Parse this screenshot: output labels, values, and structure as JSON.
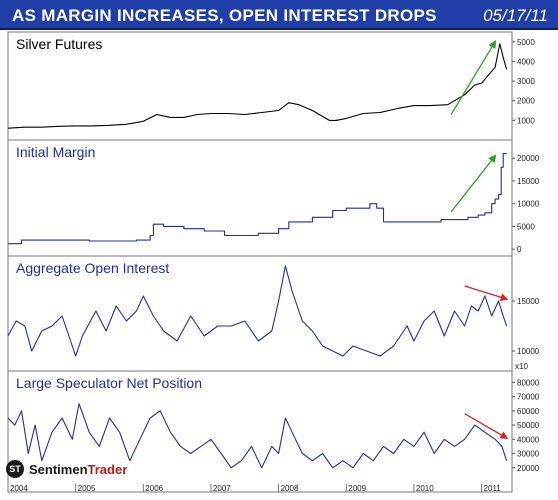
{
  "header": {
    "title": "AS MARGIN INCREASES, OPEN INTEREST DROPS",
    "date": "05/17/11",
    "bg_color": "#1f3ea8"
  },
  "logo": {
    "mark": "ST",
    "word_1": "Sentimen",
    "word_2": "Trader"
  },
  "chart_data": [
    {
      "type": "line",
      "title": "Silver Futures",
      "title_color": "#000000",
      "line_color": "#000000",
      "ylim": [
        0,
        5500
      ],
      "yticks": [
        1000,
        2000,
        3000,
        4000,
        5000
      ],
      "x": [
        2004.0,
        2004.25,
        2004.5,
        2004.75,
        2005.0,
        2005.25,
        2005.5,
        2005.75,
        2006.0,
        2006.2,
        2006.4,
        2006.6,
        2006.8,
        2007.0,
        2007.25,
        2007.5,
        2007.75,
        2008.0,
        2008.15,
        2008.3,
        2008.5,
        2008.75,
        2008.85,
        2009.0,
        2009.25,
        2009.5,
        2009.75,
        2010.0,
        2010.25,
        2010.5,
        2010.75,
        2010.9,
        2011.0,
        2011.1,
        2011.2,
        2011.27,
        2011.32,
        2011.37
      ],
      "values": [
        600,
        650,
        650,
        700,
        720,
        720,
        750,
        800,
        950,
        1300,
        1150,
        1150,
        1300,
        1350,
        1350,
        1300,
        1400,
        1500,
        1900,
        1800,
        1500,
        1000,
        1000,
        1100,
        1350,
        1400,
        1600,
        1750,
        1750,
        1800,
        2300,
        2800,
        2900,
        3300,
        3700,
        4900,
        4200,
        3600
      ],
      "annotation": {
        "type": "arrow",
        "color": "#2ca02c",
        "from": [
          2010.55,
          1300
        ],
        "to": [
          2011.2,
          5000
        ]
      }
    },
    {
      "type": "line",
      "title": "Initial Margin",
      "title_color": "#1f2fa8",
      "line_color": "#1f2fa8",
      "step": true,
      "ylim": [
        -1500,
        24000
      ],
      "yticks": [
        0,
        5000,
        10000,
        15000,
        20000
      ],
      "x": [
        2004.0,
        2004.2,
        2004.6,
        2005.2,
        2005.6,
        2005.9,
        2006.1,
        2006.15,
        2006.3,
        2006.6,
        2006.9,
        2007.2,
        2007.5,
        2007.7,
        2008.0,
        2008.15,
        2008.5,
        2008.8,
        2009.0,
        2009.35,
        2009.45,
        2009.55,
        2010.0,
        2010.4,
        2010.8,
        2010.95,
        2011.05,
        2011.15,
        2011.2,
        2011.25,
        2011.29,
        2011.32,
        2011.37
      ],
      "values": [
        1200,
        2000,
        2000,
        1800,
        1800,
        2000,
        3000,
        5500,
        5000,
        4500,
        4000,
        3000,
        3000,
        3500,
        4500,
        6000,
        7000,
        8500,
        9000,
        10000,
        9000,
        6000,
        6000,
        6500,
        7000,
        7500,
        8000,
        10000,
        11000,
        12000,
        18000,
        21000,
        21000
      ],
      "annotation": {
        "type": "arrow",
        "color": "#2ca02c",
        "from": [
          2010.55,
          8200
        ],
        "to": [
          2011.2,
          20500
        ]
      }
    },
    {
      "type": "line",
      "title": "Aggregate Open Interest",
      "title_color": "#1f2fa8",
      "line_color": "#1f2fa8",
      "ylim": [
        8000,
        19500
      ],
      "yticks": [
        10000,
        15000
      ],
      "axis_note": "x10",
      "x": [
        2004.0,
        2004.12,
        2004.25,
        2004.35,
        2004.5,
        2004.65,
        2004.8,
        2005.0,
        2005.1,
        2005.3,
        2005.45,
        2005.6,
        2005.75,
        2005.9,
        2006.0,
        2006.15,
        2006.3,
        2006.5,
        2006.7,
        2006.9,
        2007.1,
        2007.3,
        2007.5,
        2007.7,
        2007.9,
        2008.0,
        2008.1,
        2008.2,
        2008.35,
        2008.5,
        2008.65,
        2008.8,
        2008.95,
        2009.1,
        2009.3,
        2009.5,
        2009.7,
        2009.9,
        2010.0,
        2010.15,
        2010.3,
        2010.45,
        2010.6,
        2010.75,
        2010.85,
        2010.95,
        2011.05,
        2011.15,
        2011.25,
        2011.32,
        2011.37
      ],
      "values": [
        11500,
        13000,
        12500,
        10000,
        12000,
        12500,
        13500,
        9500,
        11500,
        14000,
        12000,
        14500,
        13000,
        14000,
        15500,
        13500,
        12000,
        11000,
        13500,
        11500,
        12500,
        12500,
        13000,
        11000,
        12000,
        15000,
        18500,
        16000,
        13000,
        12000,
        10500,
        10000,
        9500,
        10500,
        10000,
        9500,
        10500,
        12500,
        11000,
        13000,
        14000,
        11500,
        14000,
        12500,
        14500,
        14000,
        15500,
        13500,
        15000,
        13500,
        12500
      ],
      "annotation": {
        "type": "arrow",
        "color": "#d62728",
        "from": [
          2010.75,
          16500
        ],
        "to": [
          2011.37,
          15200
        ]
      }
    },
    {
      "type": "line",
      "title": "Large Speculator Net Position",
      "title_color": "#1f2fa8",
      "line_color": "#1f2fa8",
      "ylim": [
        10000,
        88000
      ],
      "yticks": [
        20000,
        30000,
        40000,
        50000,
        60000,
        70000,
        80000
      ],
      "x": [
        2004.0,
        2004.1,
        2004.2,
        2004.3,
        2004.4,
        2004.5,
        2004.65,
        2004.8,
        2004.95,
        2005.05,
        2005.2,
        2005.35,
        2005.5,
        2005.65,
        2005.8,
        2005.95,
        2006.1,
        2006.25,
        2006.4,
        2006.55,
        2006.7,
        2006.85,
        2007.0,
        2007.15,
        2007.3,
        2007.45,
        2007.6,
        2007.75,
        2007.9,
        2008.0,
        2008.1,
        2008.2,
        2008.35,
        2008.5,
        2008.65,
        2008.8,
        2008.95,
        2009.1,
        2009.25,
        2009.4,
        2009.55,
        2009.7,
        2009.85,
        2010.0,
        2010.15,
        2010.3,
        2010.45,
        2010.6,
        2010.75,
        2010.9,
        2011.05,
        2011.2,
        2011.3,
        2011.37
      ],
      "values": [
        55000,
        50000,
        60000,
        30000,
        50000,
        25000,
        45000,
        55000,
        40000,
        65000,
        45000,
        35000,
        55000,
        45000,
        25000,
        40000,
        55000,
        60000,
        45000,
        35000,
        30000,
        35000,
        40000,
        30000,
        20000,
        25000,
        35000,
        20000,
        35000,
        30000,
        55000,
        45000,
        30000,
        25000,
        30000,
        20000,
        25000,
        20000,
        30000,
        25000,
        35000,
        30000,
        40000,
        35000,
        45000,
        30000,
        40000,
        35000,
        40000,
        50000,
        45000,
        40000,
        35000,
        25000
      ],
      "annotation": {
        "type": "arrow",
        "color": "#d62728",
        "from": [
          2010.75,
          58000
        ],
        "to": [
          2011.37,
          41000
        ]
      }
    }
  ],
  "x_axis": {
    "range": [
      2004.0,
      2011.45
    ],
    "labels": [
      {
        "year": 2004,
        "text": "2004"
      },
      {
        "year": 2005,
        "text": "2005"
      },
      {
        "year": 2006,
        "text": "2006"
      },
      {
        "year": 2007,
        "text": "2007"
      },
      {
        "year": 2008,
        "text": "2008"
      },
      {
        "year": 2009,
        "text": "2009"
      },
      {
        "year": 2010,
        "text": "2010"
      },
      {
        "year": 2011,
        "text": "2011"
      }
    ]
  }
}
